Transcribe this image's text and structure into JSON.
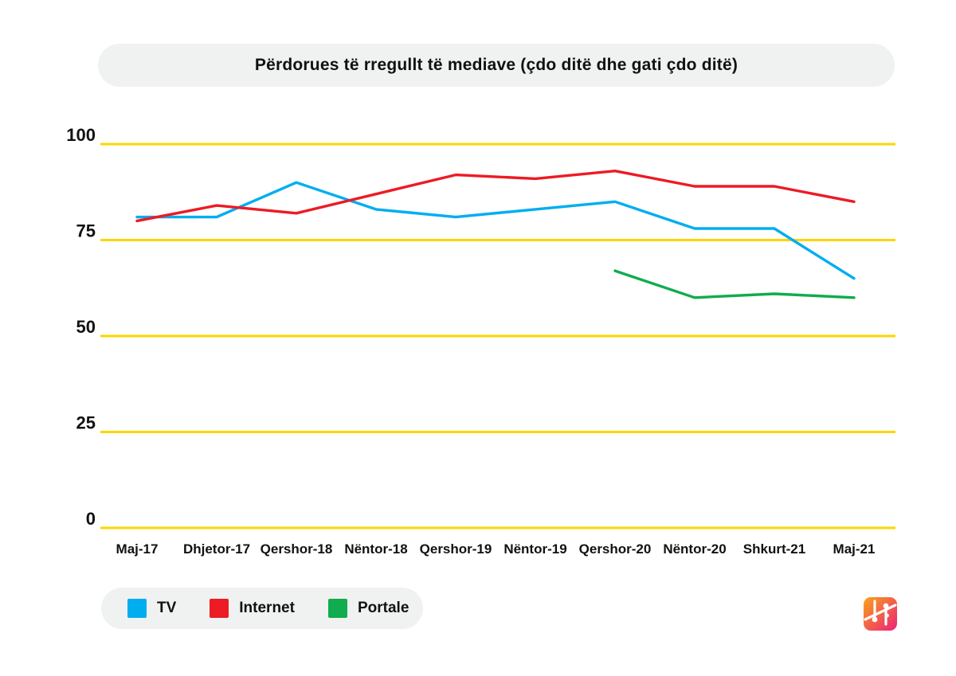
{
  "chart_data": {
    "type": "line",
    "title": "Përdorues të rregullt të mediave (çdo ditë dhe gati çdo ditë)",
    "categories": [
      "Maj-17",
      "Dhjetor-17",
      "Qershor-18",
      "Nëntor-18",
      "Qershor-19",
      "Nëntor-19",
      "Qershor-20",
      "Nëntor-20",
      "Shkurt-21",
      "Maj-21"
    ],
    "series": [
      {
        "name": "TV",
        "color": "#00AEEF",
        "values": [
          81,
          81,
          90,
          83,
          81,
          83,
          85,
          78,
          78,
          65
        ]
      },
      {
        "name": "Internet",
        "color": "#EC1B24",
        "values": [
          80,
          84,
          82,
          87,
          92,
          91,
          93,
          89,
          89,
          85
        ]
      },
      {
        "name": "Portale",
        "color": "#10AC4D",
        "values": [
          null,
          null,
          null,
          null,
          null,
          null,
          67,
          60,
          61,
          60
        ]
      }
    ],
    "y_ticks": [
      0,
      25,
      50,
      75,
      100
    ],
    "ylim": [
      0,
      100
    ],
    "xlabel": "",
    "ylabel": "",
    "grid": "horizontal-only",
    "gridline_color": "#FFD400",
    "legend_position": "bottom-left"
  },
  "legend": {
    "items": [
      {
        "label": "TV",
        "color": "#00AEEF"
      },
      {
        "label": "Internet",
        "color": "#EC1B24"
      },
      {
        "label": "Portale",
        "color": "#10AC4D"
      }
    ]
  },
  "logo": {
    "gradient_start": "#F9A21A",
    "gradient_end": "#EC2178",
    "glyph_color": "#FFFFFF"
  }
}
